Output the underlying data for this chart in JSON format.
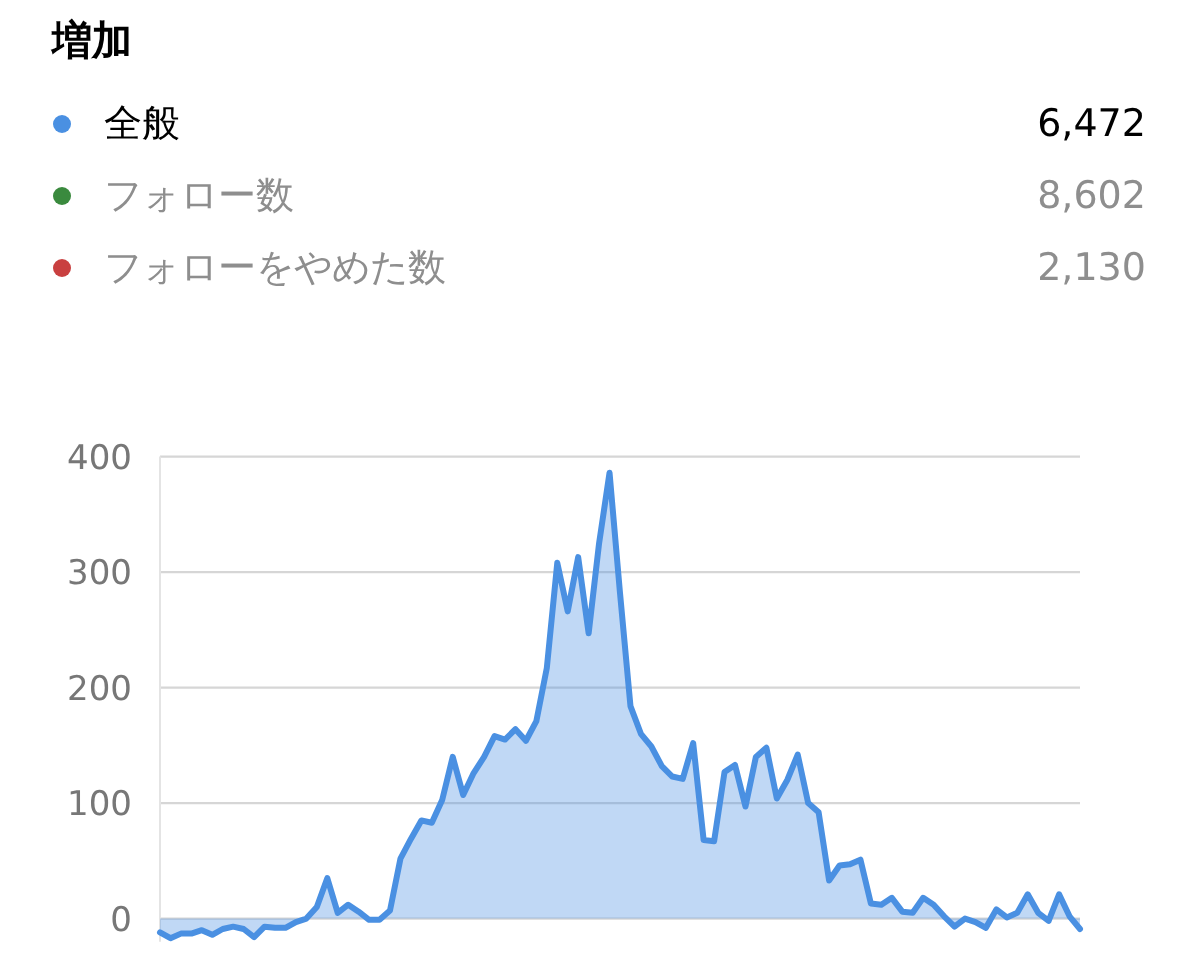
{
  "chart_data": {
    "type": "area",
    "title": "増加",
    "categories": [
      null,
      null,
      null,
      null,
      null,
      null,
      null,
      null,
      null,
      null,
      null,
      null,
      null,
      null,
      null,
      null,
      null,
      null,
      null,
      null,
      null,
      null,
      null,
      null,
      null,
      null,
      null,
      null,
      null,
      null,
      null,
      null,
      null,
      null,
      null,
      null,
      null,
      null,
      null,
      null,
      null,
      null,
      null,
      null,
      null,
      null,
      null,
      null,
      null,
      null,
      null,
      null,
      null,
      null,
      null,
      null,
      null,
      null,
      null,
      null,
      null,
      null,
      null,
      null,
      null,
      null,
      null,
      null,
      null,
      null,
      null,
      null,
      null,
      null,
      null,
      null,
      null,
      null,
      null,
      null,
      null,
      null,
      null,
      null,
      null,
      null,
      null,
      null,
      null
    ],
    "series": [
      {
        "name": "全般",
        "color": "#4a90e2",
        "values": [
          -12,
          -17,
          -13,
          -13,
          -10,
          -14,
          -9,
          -7,
          -9,
          -16,
          -7,
          -8,
          -8,
          -3,
          0,
          10,
          35,
          5,
          12,
          6,
          -1,
          -1,
          7,
          52,
          69,
          85,
          83,
          103,
          140,
          107,
          126,
          140,
          158,
          155,
          164,
          154,
          171,
          217,
          308,
          266,
          313,
          247,
          325,
          386,
          282,
          184,
          160,
          149,
          132,
          123,
          121,
          152,
          68,
          67,
          127,
          133,
          97,
          140,
          148,
          104,
          120,
          142,
          100,
          92,
          33,
          46,
          47,
          51,
          13,
          12,
          18,
          6,
          5,
          18,
          12,
          2,
          -7,
          0,
          -3,
          -8,
          8,
          1,
          5,
          21,
          5,
          -2,
          21,
          2,
          -9
        ]
      },
      {
        "name": "フォロー数",
        "color": "#3a8a3e",
        "values": [
          null,
          null,
          null,
          null,
          null,
          null,
          null,
          null,
          null,
          null,
          null,
          null,
          null,
          null,
          null,
          null,
          null,
          null,
          null,
          null,
          null,
          null,
          null,
          null,
          null,
          null,
          null,
          null,
          null,
          null,
          null,
          null,
          null,
          null,
          null,
          null,
          null,
          null,
          null,
          null,
          null,
          null,
          null,
          null,
          null,
          null,
          null,
          null,
          null,
          null,
          null,
          null,
          null,
          null,
          null,
          null,
          null,
          null,
          null,
          null,
          null,
          null,
          null,
          null,
          null,
          null,
          null,
          null,
          null,
          null,
          null,
          null,
          null,
          null,
          null,
          null,
          null,
          null,
          null,
          null,
          null,
          null,
          null,
          null,
          null,
          null,
          null,
          null,
          null
        ]
      },
      {
        "name": "フォローをやめた数",
        "color": "#c94040",
        "values": [
          null,
          null,
          null,
          null,
          null,
          null,
          null,
          null,
          null,
          null,
          null,
          null,
          null,
          null,
          null,
          null,
          null,
          null,
          null,
          null,
          null,
          null,
          null,
          null,
          null,
          null,
          null,
          null,
          null,
          null,
          null,
          null,
          null,
          null,
          null,
          null,
          null,
          null,
          null,
          null,
          null,
          null,
          null,
          null,
          null,
          null,
          null,
          null,
          null,
          null,
          null,
          null,
          null,
          null,
          null,
          null,
          null,
          null,
          null,
          null,
          null,
          null,
          null,
          null,
          null,
          null,
          null,
          null,
          null,
          null,
          null,
          null,
          null,
          null,
          null,
          null,
          null,
          null,
          null,
          null,
          null,
          null,
          null,
          null,
          null,
          null,
          null,
          null,
          null
        ]
      }
    ],
    "annotations": [
      "6,472",
      "8,602",
      "2,130"
    ],
    "ylim": [
      -20,
      400
    ],
    "yticks": [
      0,
      100,
      200,
      300,
      400
    ],
    "grid": "y",
    "legend": "top",
    "tick_labels": "y"
  }
}
